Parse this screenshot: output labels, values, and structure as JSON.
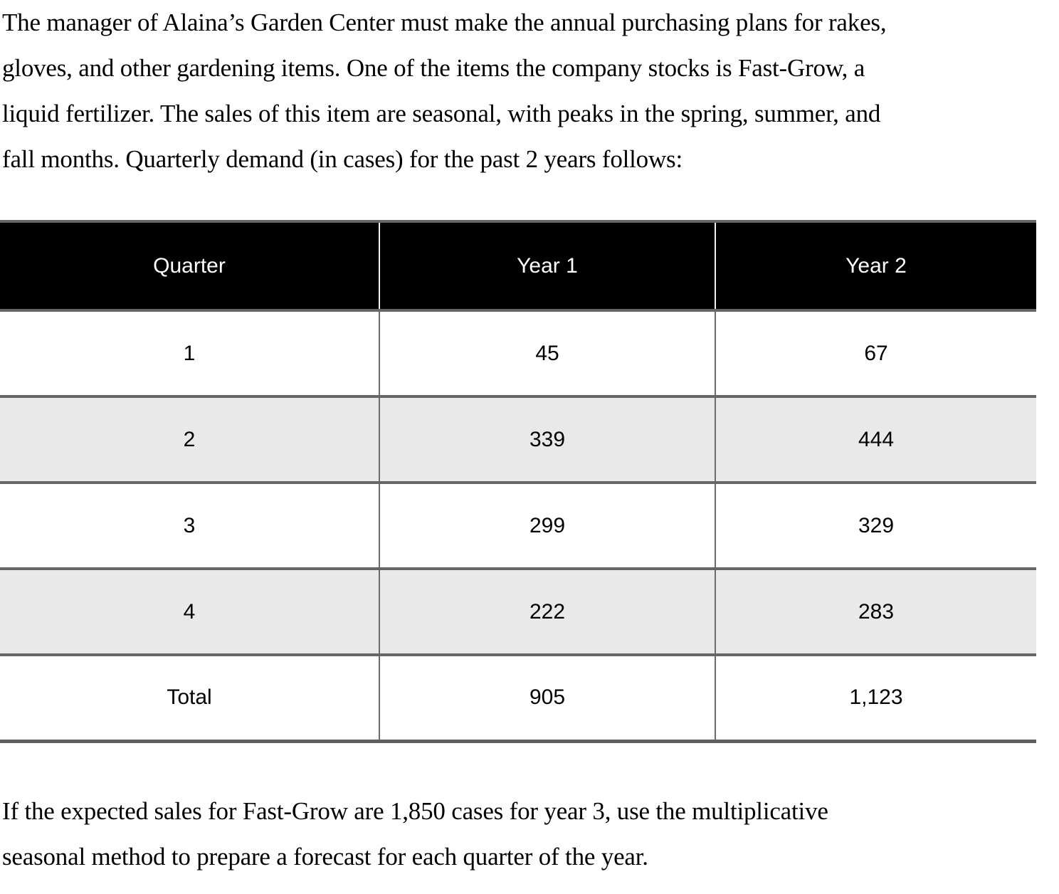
{
  "intro": {
    "lines": [
      "The manager of Alaina’s Garden Center must make the annual purchasing plans for rakes,",
      "gloves, and other gardening items. One of the items the company stocks is Fast-Grow, a",
      "liquid fertilizer. The sales of this item are seasonal, with peaks in the spring, summer, and",
      "fall months. Quarterly demand (in cases) for the past 2 years follows:"
    ]
  },
  "table": {
    "headers": [
      "Quarter",
      "Year 1",
      "Year 2"
    ],
    "rows": [
      [
        "1",
        "45",
        "67"
      ],
      [
        "2",
        "339",
        "444"
      ],
      [
        "3",
        "299",
        "329"
      ],
      [
        "4",
        "222",
        "283"
      ],
      [
        "Total",
        "905",
        "1,123"
      ]
    ],
    "totals": {
      "year1": "905",
      "year2": "1,123"
    }
  },
  "question": {
    "lines": [
      "If the expected sales for Fast-Grow are 1,850 cases for year 3, use the multiplicative",
      "seasonal method to prepare a forecast for each quarter of the year."
    ],
    "expected_sales_year3": "1,850"
  },
  "colors": {
    "header_bg": "#000000",
    "header_text": "#ffffff",
    "alt_row_bg": "#e9e9e9",
    "border": "#666666"
  }
}
